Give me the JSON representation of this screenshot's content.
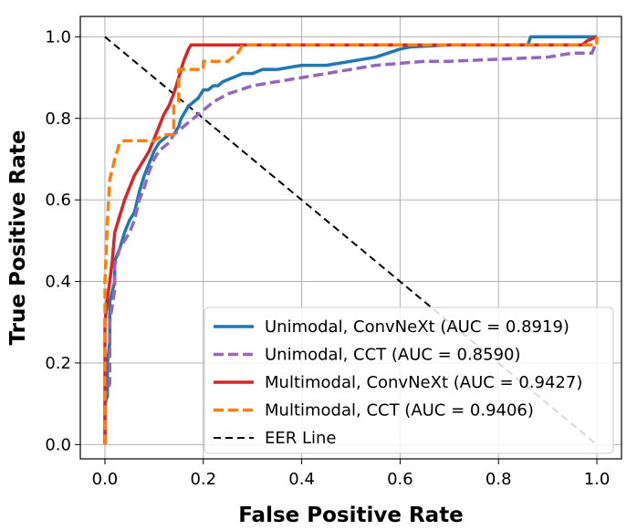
{
  "chart_data": {
    "type": "line",
    "title": "",
    "xlabel": "False Positive Rate",
    "ylabel": "True Positive Rate",
    "xlim": [
      -0.05,
      1.05
    ],
    "ylim": [
      -0.035,
      1.05
    ],
    "xticks": [
      0.0,
      0.2,
      0.4,
      0.6,
      0.8,
      1.0
    ],
    "yticks": [
      0.0,
      0.2,
      0.4,
      0.6,
      0.8,
      1.0
    ],
    "xtick_labels": [
      "0.0",
      "0.2",
      "0.4",
      "0.6",
      "0.8",
      "1.0"
    ],
    "ytick_labels": [
      "0.0",
      "0.2",
      "0.4",
      "0.6",
      "0.8",
      "1.0"
    ],
    "grid": true,
    "legend_position": "lower-right",
    "series": [
      {
        "name": "Unimodal, ConvNeXt (AUC = 0.8919)",
        "color": "#1f77b4",
        "dashed": false,
        "x": [
          0,
          0,
          0.005,
          0.005,
          0.01,
          0.01,
          0.02,
          0.02,
          0.03,
          0.035,
          0.04,
          0.05,
          0.06,
          0.07,
          0.08,
          0.09,
          0.1,
          0.11,
          0.12,
          0.13,
          0.14,
          0.15,
          0.155,
          0.16,
          0.17,
          0.18,
          0.19,
          0.2,
          0.21,
          0.22,
          0.23,
          0.24,
          0.26,
          0.28,
          0.3,
          0.32,
          0.35,
          0.4,
          0.45,
          0.5,
          0.55,
          0.6,
          0.62,
          0.7,
          0.8,
          0.86,
          0.865,
          0.9,
          0.95,
          1.0
        ],
        "y": [
          0,
          0.1,
          0.12,
          0.2,
          0.25,
          0.35,
          0.4,
          0.45,
          0.48,
          0.5,
          0.52,
          0.55,
          0.57,
          0.62,
          0.66,
          0.69,
          0.72,
          0.74,
          0.75,
          0.76,
          0.76,
          0.78,
          0.8,
          0.81,
          0.83,
          0.84,
          0.85,
          0.87,
          0.87,
          0.88,
          0.88,
          0.89,
          0.9,
          0.91,
          0.91,
          0.92,
          0.92,
          0.93,
          0.93,
          0.94,
          0.95,
          0.97,
          0.975,
          0.98,
          0.98,
          0.98,
          1.0,
          1.0,
          1.0,
          1.0
        ]
      },
      {
        "name": "Unimodal, CCT (AUC = 0.8590)",
        "color": "#9467bd",
        "dashed": true,
        "x": [
          0,
          0,
          0.01,
          0.01,
          0.02,
          0.02,
          0.03,
          0.04,
          0.05,
          0.06,
          0.07,
          0.08,
          0.09,
          0.1,
          0.11,
          0.12,
          0.13,
          0.14,
          0.15,
          0.16,
          0.17,
          0.18,
          0.19,
          0.2,
          0.22,
          0.25,
          0.3,
          0.35,
          0.4,
          0.45,
          0.5,
          0.55,
          0.6,
          0.65,
          0.7,
          0.8,
          0.9,
          0.95,
          0.99,
          1.0
        ],
        "y": [
          0,
          0.12,
          0.15,
          0.3,
          0.38,
          0.44,
          0.48,
          0.5,
          0.52,
          0.55,
          0.6,
          0.63,
          0.67,
          0.7,
          0.72,
          0.73,
          0.74,
          0.76,
          0.77,
          0.78,
          0.79,
          0.8,
          0.81,
          0.82,
          0.84,
          0.86,
          0.88,
          0.89,
          0.9,
          0.91,
          0.92,
          0.93,
          0.935,
          0.94,
          0.94,
          0.945,
          0.95,
          0.96,
          0.96,
          0.99
        ]
      },
      {
        "name": "Multimodal, ConvNeXt (AUC = 0.9427)",
        "color": "#d62728",
        "dashed": false,
        "x": [
          0,
          0,
          0.005,
          0.01,
          0.015,
          0.02,
          0.03,
          0.04,
          0.05,
          0.06,
          0.07,
          0.08,
          0.09,
          0.1,
          0.11,
          0.12,
          0.13,
          0.14,
          0.15,
          0.16,
          0.17,
          0.175,
          0.2,
          0.3,
          0.4,
          0.5,
          0.6,
          0.7,
          0.8,
          0.9,
          0.97,
          0.98,
          1.0
        ],
        "y": [
          0,
          0.3,
          0.36,
          0.4,
          0.45,
          0.52,
          0.56,
          0.6,
          0.63,
          0.66,
          0.68,
          0.7,
          0.72,
          0.75,
          0.78,
          0.81,
          0.83,
          0.86,
          0.9,
          0.94,
          0.97,
          0.98,
          0.98,
          0.98,
          0.98,
          0.98,
          0.98,
          0.98,
          0.98,
          0.98,
          0.98,
          0.99,
          1.0
        ]
      },
      {
        "name": "Multimodal, CCT (AUC = 0.9406)",
        "color": "#ff7f0e",
        "dashed": true,
        "x": [
          0,
          0,
          0.005,
          0.01,
          0.02,
          0.03,
          0.04,
          0.05,
          0.06,
          0.08,
          0.1,
          0.12,
          0.14,
          0.14,
          0.15,
          0.15,
          0.18,
          0.2,
          0.2,
          0.25,
          0.27,
          0.28,
          0.3,
          0.4,
          0.5,
          0.6,
          0.7,
          0.8,
          0.9,
          1.0,
          1.0
        ],
        "y": [
          0,
          0.4,
          0.55,
          0.65,
          0.7,
          0.74,
          0.745,
          0.745,
          0.745,
          0.745,
          0.745,
          0.76,
          0.76,
          0.83,
          0.84,
          0.92,
          0.92,
          0.92,
          0.94,
          0.94,
          0.96,
          0.98,
          0.98,
          0.98,
          0.98,
          0.98,
          0.98,
          0.98,
          0.98,
          0.98,
          1.0
        ]
      },
      {
        "name": "EER Line",
        "color": "#000000",
        "dashed": true,
        "x": [
          0,
          1
        ],
        "y": [
          1,
          0
        ]
      }
    ]
  }
}
